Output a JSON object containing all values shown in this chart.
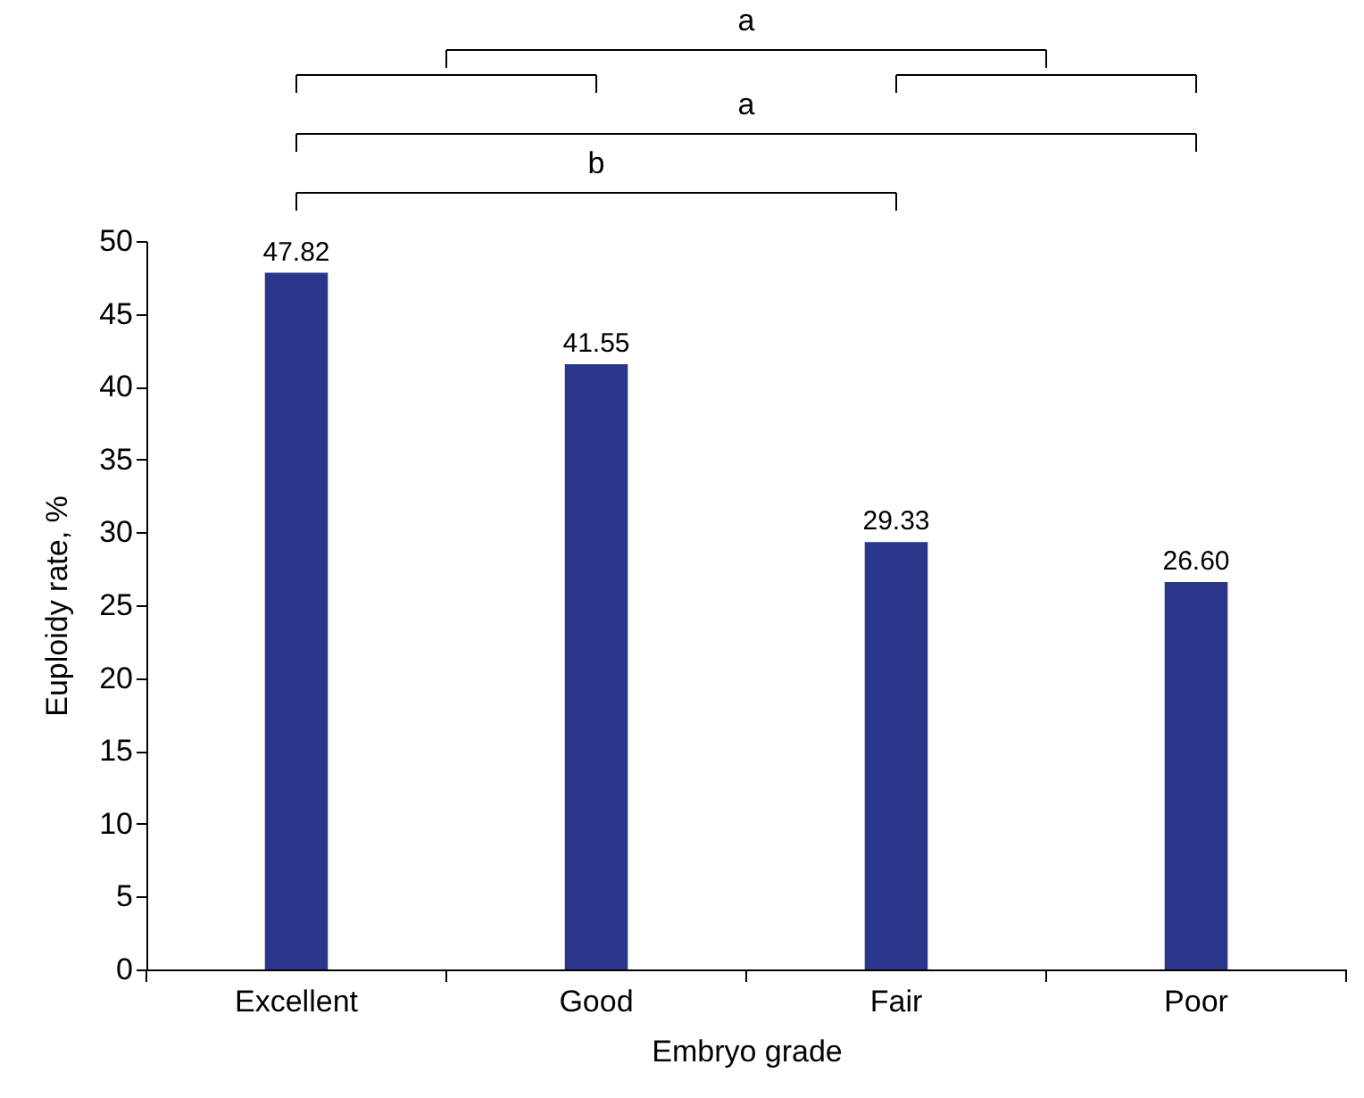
{
  "chart_data": {
    "type": "bar",
    "xlabel": "Embryo grade",
    "ylabel": "Euploidy rate, %",
    "categories": [
      "Excellent",
      "Good",
      "Fair",
      "Poor"
    ],
    "values": [
      47.82,
      41.55,
      29.33,
      26.6
    ],
    "value_labels": [
      "47.82",
      "41.55",
      "29.33",
      "26.60"
    ],
    "color": "#29368a",
    "ylim": [
      0,
      50
    ],
    "yticks": [
      0,
      5,
      10,
      15,
      20,
      25,
      30,
      35,
      40,
      45,
      50
    ],
    "grid": false,
    "annotations": [
      "a",
      "a",
      "b"
    ]
  }
}
